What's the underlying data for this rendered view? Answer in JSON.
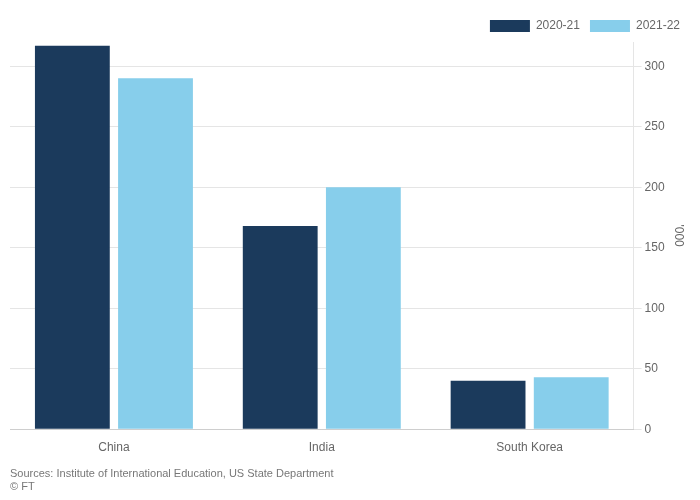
{
  "chart_data": {
    "type": "bar",
    "categories": [
      "China",
      "India",
      "South Korea"
    ],
    "series": [
      {
        "name": "2020-21",
        "color": "#1b3a5c",
        "values": [
          317,
          168,
          40
        ]
      },
      {
        "name": "2021-22",
        "color": "#87ceeb",
        "values": [
          290,
          200,
          43
        ]
      }
    ],
    "ylabel": "'000",
    "annotations": [
      "Sources: Institute of International Education, US State Department",
      "© FT"
    ],
    "ylim": [
      0,
      320
    ],
    "yticks": [
      0,
      50,
      100,
      150,
      200,
      250,
      300
    ],
    "grid": true,
    "legend": "upper right"
  }
}
